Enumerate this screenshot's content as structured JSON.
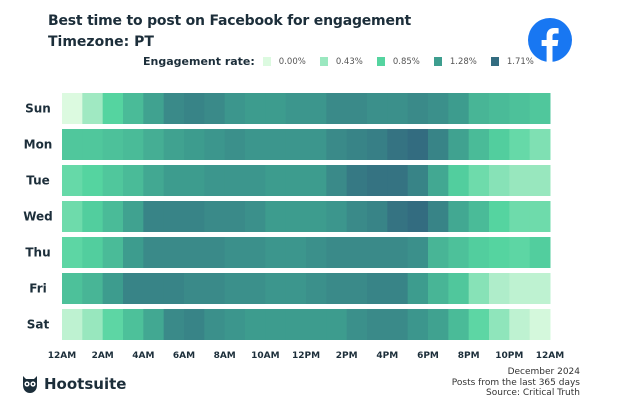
{
  "chart_data": {
    "type": "heatmap",
    "title": "Best time to post on Facebook for engagement",
    "subtitle": "Timezone: PT",
    "legend": {
      "title": "Engagement rate:",
      "stops": [
        {
          "label": "0.00%",
          "value": 0.0,
          "color": "#dcfae0"
        },
        {
          "label": "0.43%",
          "value": 0.43,
          "color": "#9be8c0"
        },
        {
          "label": "0.85%",
          "value": 0.85,
          "color": "#55d4a0"
        },
        {
          "label": "1.28%",
          "value": 1.28,
          "color": "#3e9e8f"
        },
        {
          "label": "1.71%",
          "value": 1.71,
          "color": "#336c80"
        }
      ],
      "placement": "top"
    },
    "rows": [
      "Sun",
      "Mon",
      "Tue",
      "Wed",
      "Thu",
      "Fri",
      "Sat"
    ],
    "x_tick_labels": [
      "12AM",
      "2AM",
      "4AM",
      "6AM",
      "8AM",
      "10AM",
      "12PM",
      "2PM",
      "4PM",
      "6PM",
      "8PM",
      "10PM",
      "12AM"
    ],
    "unit": "%",
    "values": [
      [
        0.0,
        0.4,
        0.85,
        1.05,
        1.25,
        1.45,
        1.5,
        1.45,
        1.35,
        1.3,
        1.3,
        1.35,
        1.35,
        1.45,
        1.45,
        1.4,
        1.4,
        1.45,
        1.4,
        1.3,
        1.1,
        1.05,
        1.0,
        0.95
      ],
      [
        0.95,
        0.95,
        1.0,
        1.05,
        1.15,
        1.25,
        1.3,
        1.35,
        1.4,
        1.35,
        1.35,
        1.35,
        1.35,
        1.45,
        1.5,
        1.55,
        1.65,
        1.71,
        1.5,
        1.25,
        1.05,
        0.9,
        0.75,
        0.6
      ],
      [
        0.75,
        0.85,
        0.95,
        1.05,
        1.2,
        1.3,
        1.3,
        1.35,
        1.35,
        1.35,
        1.3,
        1.3,
        1.3,
        1.45,
        1.6,
        1.65,
        1.65,
        1.5,
        1.2,
        0.9,
        0.7,
        0.55,
        0.45,
        0.45
      ],
      [
        0.7,
        0.9,
        1.05,
        1.25,
        1.5,
        1.5,
        1.5,
        1.45,
        1.45,
        1.4,
        1.3,
        1.3,
        1.3,
        1.35,
        1.45,
        1.5,
        1.65,
        1.71,
        1.5,
        1.2,
        1.05,
        0.85,
        0.7,
        0.7
      ],
      [
        0.8,
        0.9,
        1.05,
        1.3,
        1.45,
        1.45,
        1.45,
        1.45,
        1.4,
        1.4,
        1.35,
        1.35,
        1.4,
        1.45,
        1.45,
        1.45,
        1.45,
        1.4,
        1.1,
        1.0,
        0.9,
        0.85,
        0.8,
        0.9
      ],
      [
        1.0,
        1.1,
        1.3,
        1.5,
        1.5,
        1.5,
        1.45,
        1.45,
        1.4,
        1.4,
        1.35,
        1.35,
        1.4,
        1.45,
        1.45,
        1.5,
        1.5,
        1.3,
        1.1,
        0.95,
        0.55,
        0.3,
        0.2,
        0.2
      ],
      [
        0.2,
        0.45,
        0.8,
        1.0,
        1.2,
        1.45,
        1.5,
        1.4,
        1.35,
        1.3,
        1.3,
        1.3,
        1.3,
        1.3,
        1.4,
        1.45,
        1.45,
        1.35,
        1.25,
        1.05,
        0.8,
        0.5,
        0.2,
        0.05
      ]
    ]
  },
  "brand": {
    "name": "Hootsuite",
    "facebook_color": "#1877f2"
  },
  "footer": {
    "line1": "December 2024",
    "line2": "Posts from the last 365 days",
    "line3": "Source: Critical Truth"
  }
}
